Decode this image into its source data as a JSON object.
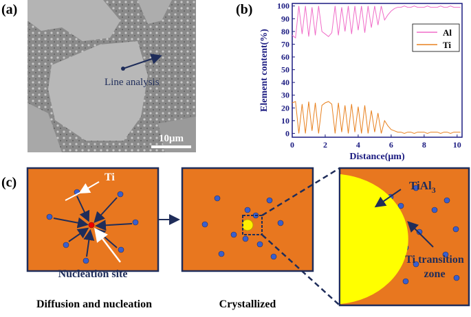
{
  "panels": {
    "a": "(a)",
    "b": "(b)",
    "c": "(c)"
  },
  "sem": {
    "annotation": "Line analysis",
    "scale_bar": "10μm"
  },
  "chart_data": {
    "type": "line",
    "x_label": "Distance(μm)",
    "y_label": "Element content(%)",
    "x": [
      0,
      0.2,
      0.4,
      0.6,
      0.8,
      1.0,
      1.2,
      1.4,
      1.6,
      1.8,
      2.0,
      2.2,
      2.4,
      2.6,
      2.8,
      3.0,
      3.2,
      3.4,
      3.6,
      3.8,
      4.0,
      4.2,
      4.4,
      4.6,
      4.8,
      5.0,
      5.2,
      5.4,
      5.6,
      5.8,
      6.0,
      6.2,
      6.4,
      6.6,
      6.8,
      7.0,
      7.2,
      7.4,
      7.6,
      7.8,
      8.0,
      8.2,
      8.4,
      8.6,
      8.8,
      9.0,
      9.2,
      9.4,
      9.6,
      9.8,
      10.0,
      10.2
    ],
    "series": [
      {
        "name": "Al",
        "color": "#f06cc8",
        "values": [
          77,
          75,
          100,
          78,
          100,
          76,
          99,
          77,
          100,
          80,
          78,
          76,
          79,
          100,
          77,
          99,
          80,
          100,
          78,
          100,
          81,
          100,
          79,
          100,
          83,
          100,
          85,
          100,
          89,
          93,
          96,
          98,
          99,
          99,
          100,
          99,
          99,
          100,
          99,
          99,
          99,
          100,
          99,
          99,
          99,
          100,
          99,
          99,
          100,
          99,
          99,
          99
        ]
      },
      {
        "name": "Ti",
        "color": "#e8801e",
        "values": [
          24,
          25,
          0,
          23,
          0,
          25,
          2,
          24,
          0,
          22,
          24,
          25,
          23,
          0,
          24,
          1,
          22,
          0,
          23,
          1,
          21,
          0,
          22,
          0,
          18,
          1,
          16,
          0,
          10,
          6,
          3,
          2,
          1,
          1,
          0,
          1,
          1,
          0,
          1,
          1,
          1,
          0,
          1,
          1,
          1,
          0,
          1,
          1,
          0,
          1,
          1,
          1
        ]
      }
    ],
    "xlim": [
      0,
      10.3
    ],
    "ylim": [
      -3,
      102
    ],
    "xticks": [
      0,
      2,
      4,
      6,
      8,
      10
    ],
    "yticks": [
      0,
      10,
      20,
      30,
      40,
      50,
      60,
      70,
      80,
      90,
      100
    ],
    "legend": "upper-right"
  },
  "diagram": {
    "ti_label": "Ti",
    "nucleation_label": "Nucleation site",
    "tial3": {
      "text": "TiAl",
      "subscript": "3"
    },
    "transition_label": [
      "Ti transition",
      "zone"
    ],
    "captions": [
      "Diffusion and nucleation",
      "Crystallized"
    ]
  }
}
